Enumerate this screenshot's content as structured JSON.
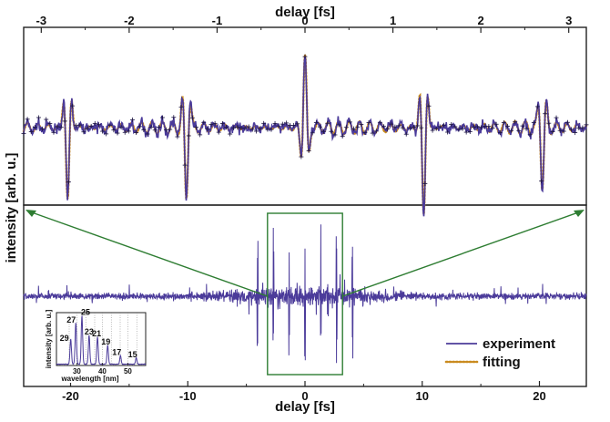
{
  "chart_data": {
    "type": "line",
    "top_axis": {
      "label": "delay [fs]",
      "xlim": [
        -3.2,
        3.2
      ],
      "ticks": [
        -3,
        -2,
        -1,
        0,
        1,
        2,
        3
      ],
      "tick_labels": [
        "-3",
        "-2",
        "-1",
        "0",
        "1",
        "2",
        "3"
      ]
    },
    "bottom_axis": {
      "label": "delay [fs]",
      "xlim": [
        -24,
        24
      ],
      "ticks": [
        -20,
        -10,
        0,
        10,
        20
      ],
      "tick_labels": [
        "-20",
        "-10",
        "0",
        "10",
        "20"
      ]
    },
    "ylabel": "intensity [arb. u.]",
    "zoom_window": [
      -3.2,
      3.2
    ],
    "upper_trace_peaks": [
      {
        "x": -2.7,
        "amp": -1.0
      },
      {
        "x": -1.35,
        "amp": -0.95
      },
      {
        "x": 0.0,
        "amp": 1.0
      },
      {
        "x": 1.35,
        "amp": -1.2
      },
      {
        "x": 2.7,
        "amp": -0.8
      }
    ],
    "lower_trace_pulse_spacing": 1.35,
    "series": [
      {
        "name": "experiment",
        "color": "#4b3b9a",
        "style": "solid"
      },
      {
        "name": "fitting",
        "color": "#c98a1e",
        "style": "dotted"
      }
    ],
    "legend": "bottom-right",
    "inset": {
      "xlabel": "wavelength [nm]",
      "ylabel": "intensity [arb. u.]",
      "xlim": [
        22,
        57
      ],
      "ticks": [
        30,
        40,
        50
      ],
      "tick_labels": [
        "30",
        "40",
        "50"
      ],
      "peaks": [
        {
          "order": "29",
          "wavelength": 27.6,
          "height": 0.48
        },
        {
          "order": "27",
          "wavelength": 29.6,
          "height": 0.78
        },
        {
          "order": "25",
          "wavelength": 32.0,
          "height": 0.92
        },
        {
          "order": "23",
          "wavelength": 34.8,
          "height": 0.55
        },
        {
          "order": "21",
          "wavelength": 38.1,
          "height": 0.52
        },
        {
          "order": "19",
          "wavelength": 42.1,
          "height": 0.36
        },
        {
          "order": "17",
          "wavelength": 47.1,
          "height": 0.16
        },
        {
          "order": "15",
          "wavelength": 53.3,
          "height": 0.12
        }
      ]
    }
  }
}
